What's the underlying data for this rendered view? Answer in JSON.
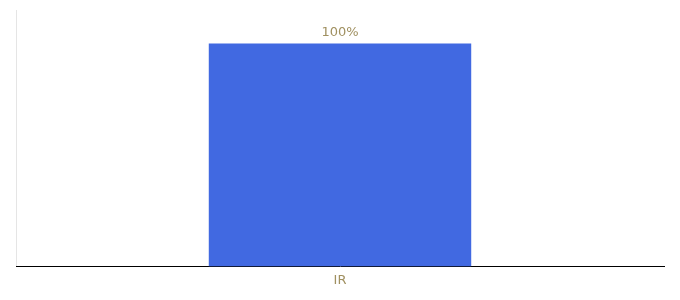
{
  "chart_data": {
    "type": "bar",
    "categories": [
      "IR"
    ],
    "values": [
      100
    ],
    "value_labels": [
      "100%"
    ],
    "data_labels": true,
    "color": "#4169e1",
    "ylim": [
      0,
      115
    ],
    "tick_labels": "x",
    "grid": false
  }
}
